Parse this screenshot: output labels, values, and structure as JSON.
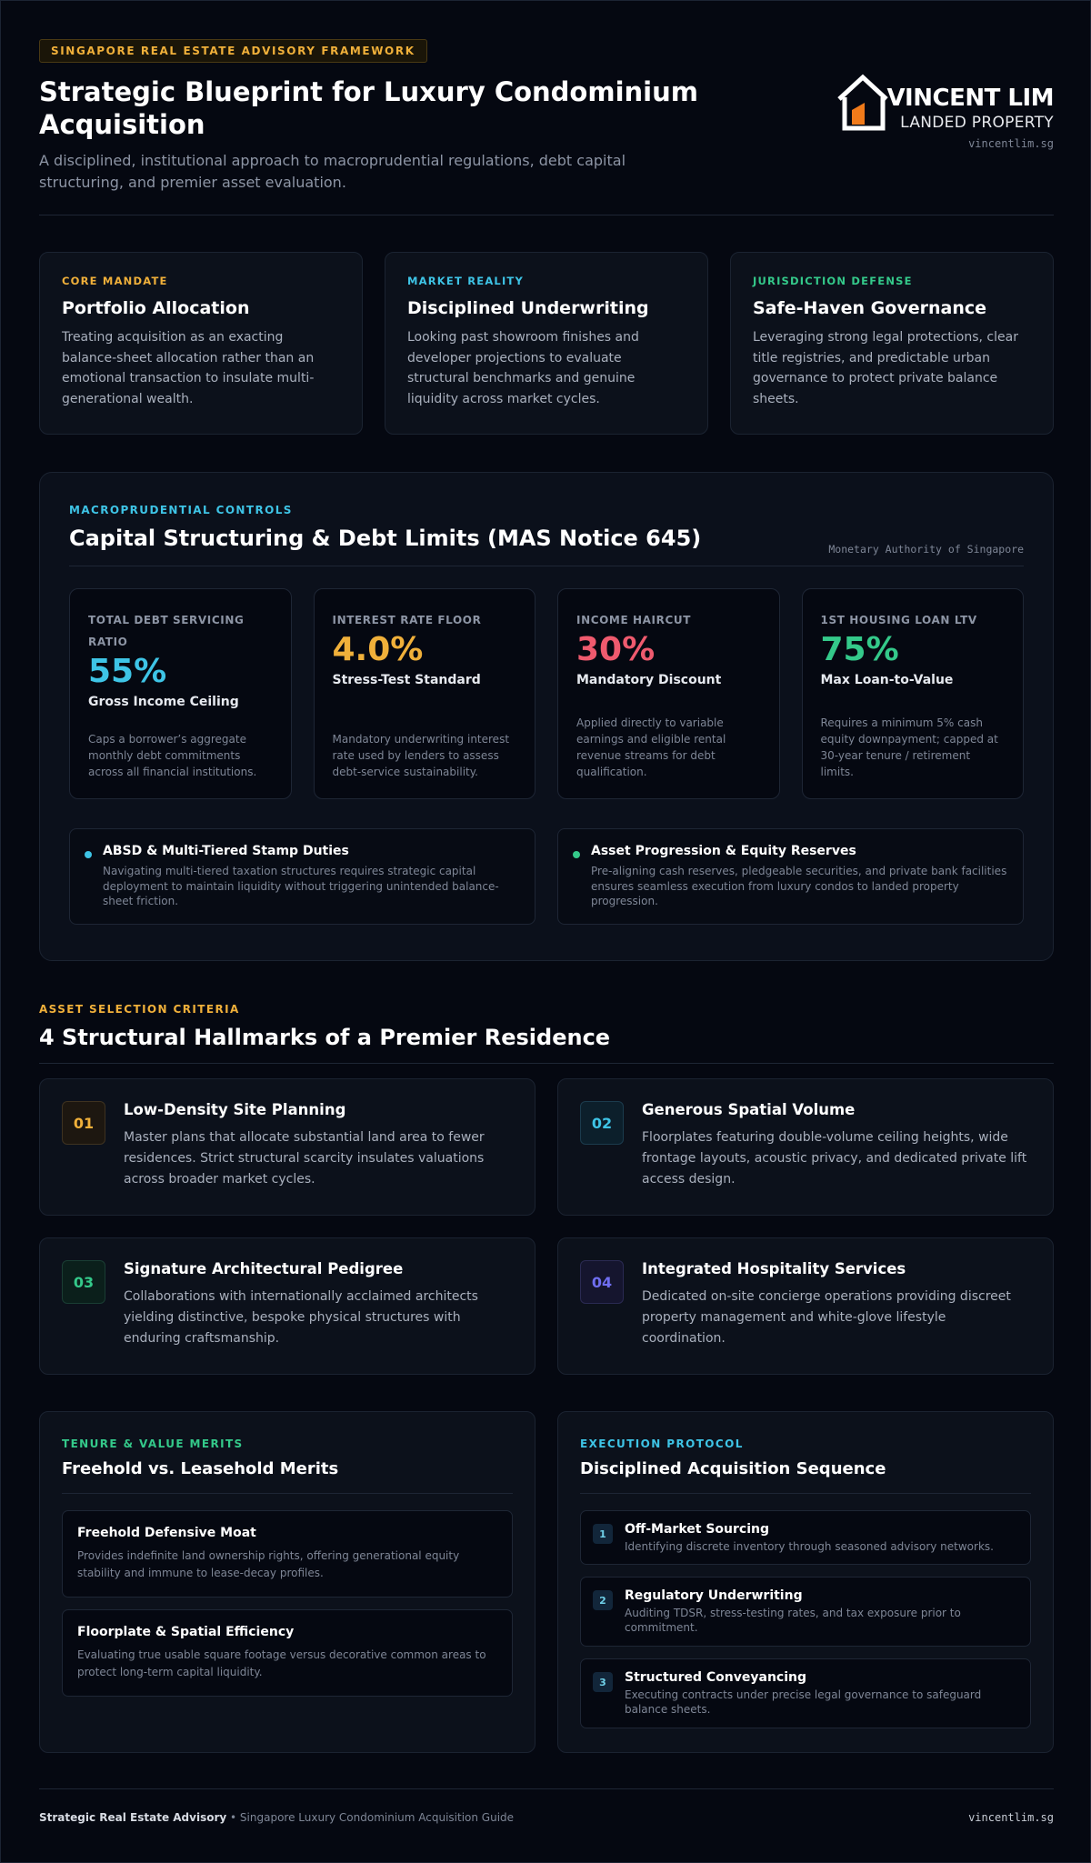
{
  "header": {
    "badge": "SINGAPORE REAL ESTATE ADVISORY FRAMEWORK",
    "title": "Strategic Blueprint for Luxury Condominium Acquisition",
    "subtitle": "A disciplined, institutional approach to macroprudential regulations, debt capital structuring, and premier asset evaluation.",
    "logo": {
      "name": "VINCENT LIM",
      "sub": "LANDED PROPERTY",
      "url": "vincentlim.sg",
      "accent": "#f07a1a"
    }
  },
  "pillars": [
    {
      "tag": "CORE MANDATE",
      "color": "#f0b03a",
      "title": "Portfolio Allocation",
      "desc": "Treating acquisition as an exacting balance-sheet allocation rather than an emotional transaction to insulate multi-generational wealth."
    },
    {
      "tag": "MARKET REALITY",
      "color": "#3ec4e6",
      "title": "Disciplined Underwriting",
      "desc": "Looking past showroom finishes and developer projections to evaluate structural benchmarks and genuine liquidity across market cycles."
    },
    {
      "tag": "JURISDICTION DEFENSE",
      "color": "#34c98a",
      "title": "Safe-Haven Governance",
      "desc": "Leveraging strong legal protections, clear title registries, and predictable urban governance to protect private balance sheets."
    }
  ],
  "capital": {
    "tag": "MACROPRUDENTIAL CONTROLS",
    "title": "Capital Structuring & Debt Limits (MAS Notice 645)",
    "authority": "Monetary Authority of Singapore",
    "metrics": [
      {
        "label": "TOTAL DEBT SERVICING RATIO",
        "value": "55%",
        "color": "#3ec4e6",
        "sub": "Gross Income Ceiling",
        "desc": "Caps a borrower’s aggregate monthly debt commitments across all financial institutions."
      },
      {
        "label": "INTEREST RATE FLOOR",
        "value": "4.0%",
        "color": "#f0b03a",
        "sub": "Stress-Test Standard",
        "desc": "Mandatory underwriting interest rate used by lenders to assess debt-service sustainability."
      },
      {
        "label": "INCOME HAIRCUT",
        "value": "30%",
        "color": "#ef5a6e",
        "sub": "Mandatory Discount",
        "desc": "Applied directly to variable earnings and eligible rental revenue streams for debt qualification."
      },
      {
        "label": "1ST HOUSING LOAN LTV",
        "value": "75%",
        "color": "#34c98a",
        "sub": "Max Loan-to-Value",
        "desc": "Requires a minimum 5% cash equity downpayment; capped at 30-year tenure / retirement limits."
      }
    ],
    "notes": [
      {
        "title": "ABSD & Multi-Tiered Stamp Duties",
        "color": "#3ec4e6",
        "desc": "Navigating multi-tiered taxation structures requires strategic capital deployment to maintain liquidity without triggering unintended balance-sheet friction."
      },
      {
        "title": "Asset Progression & Equity Reserves",
        "color": "#34c98a",
        "desc": "Pre-aligning cash reserves, pledgeable securities, and private bank facilities ensures seamless execution from luxury condos to landed property progression."
      }
    ]
  },
  "hallmarks": {
    "tag": "ASSET SELECTION CRITERIA",
    "title": "4 Structural Hallmarks of a Premier Residence",
    "items": [
      {
        "num": "01",
        "color": "#f0b03a",
        "bg": "#1d1710",
        "border": "#3e3220",
        "title": "Low-Density Site Planning",
        "desc": "Master plans that allocate substantial land area to fewer residences. Strict structural scarcity insulates valuations across broader market cycles."
      },
      {
        "num": "02",
        "color": "#3ec4e6",
        "bg": "#0c1f2b",
        "border": "#1b3b4d",
        "title": "Generous Spatial Volume",
        "desc": "Floorplates featuring double-volume ceiling heights, wide frontage layouts, acoustic privacy, and dedicated private lift access design."
      },
      {
        "num": "03",
        "color": "#34c98a",
        "bg": "#0b1f1b",
        "border": "#1a3d33",
        "title": "Signature Architectural Pedigree",
        "desc": "Collaborations with internationally acclaimed architects yielding distinctive, bespoke physical structures with enduring craftsmanship."
      },
      {
        "num": "04",
        "color": "#6f6ef0",
        "bg": "#15152e",
        "border": "#2a2a52",
        "title": "Integrated Hospitality Services",
        "desc": "Dedicated on-site concierge operations providing discreet property management and white-glove lifestyle coordination."
      }
    ]
  },
  "tenure": {
    "tag": "TENURE & VALUE MERITS",
    "color": "#34c98a",
    "title": "Freehold vs. Leasehold Merits",
    "items": [
      {
        "title": "Freehold Defensive Moat",
        "desc": "Provides indefinite land ownership rights, offering generational equity stability and immune to lease-decay profiles."
      },
      {
        "title": "Floorplate & Spatial Efficiency",
        "desc": "Evaluating true usable square footage versus decorative common areas to protect long-term capital liquidity."
      }
    ]
  },
  "execution": {
    "tag": "EXECUTION PROTOCOL",
    "color": "#3ec4e6",
    "title": "Disciplined Acquisition Sequence",
    "steps": [
      {
        "num": "1",
        "title": "Off-Market Sourcing",
        "desc": "Identifying discrete inventory through seasoned advisory networks."
      },
      {
        "num": "2",
        "title": "Regulatory Underwriting",
        "desc": "Auditing TDSR, stress-testing rates, and tax exposure prior to commitment."
      },
      {
        "num": "3",
        "title": "Structured Conveyancing",
        "desc": "Executing contracts under precise legal governance to safeguard balance sheets."
      }
    ]
  },
  "footer": {
    "brand": "Strategic Real Estate Advisory",
    "separator": " • ",
    "guide": "Singapore Luxury Condominium Acquisition Guide",
    "url": "vincentlim.sg"
  }
}
